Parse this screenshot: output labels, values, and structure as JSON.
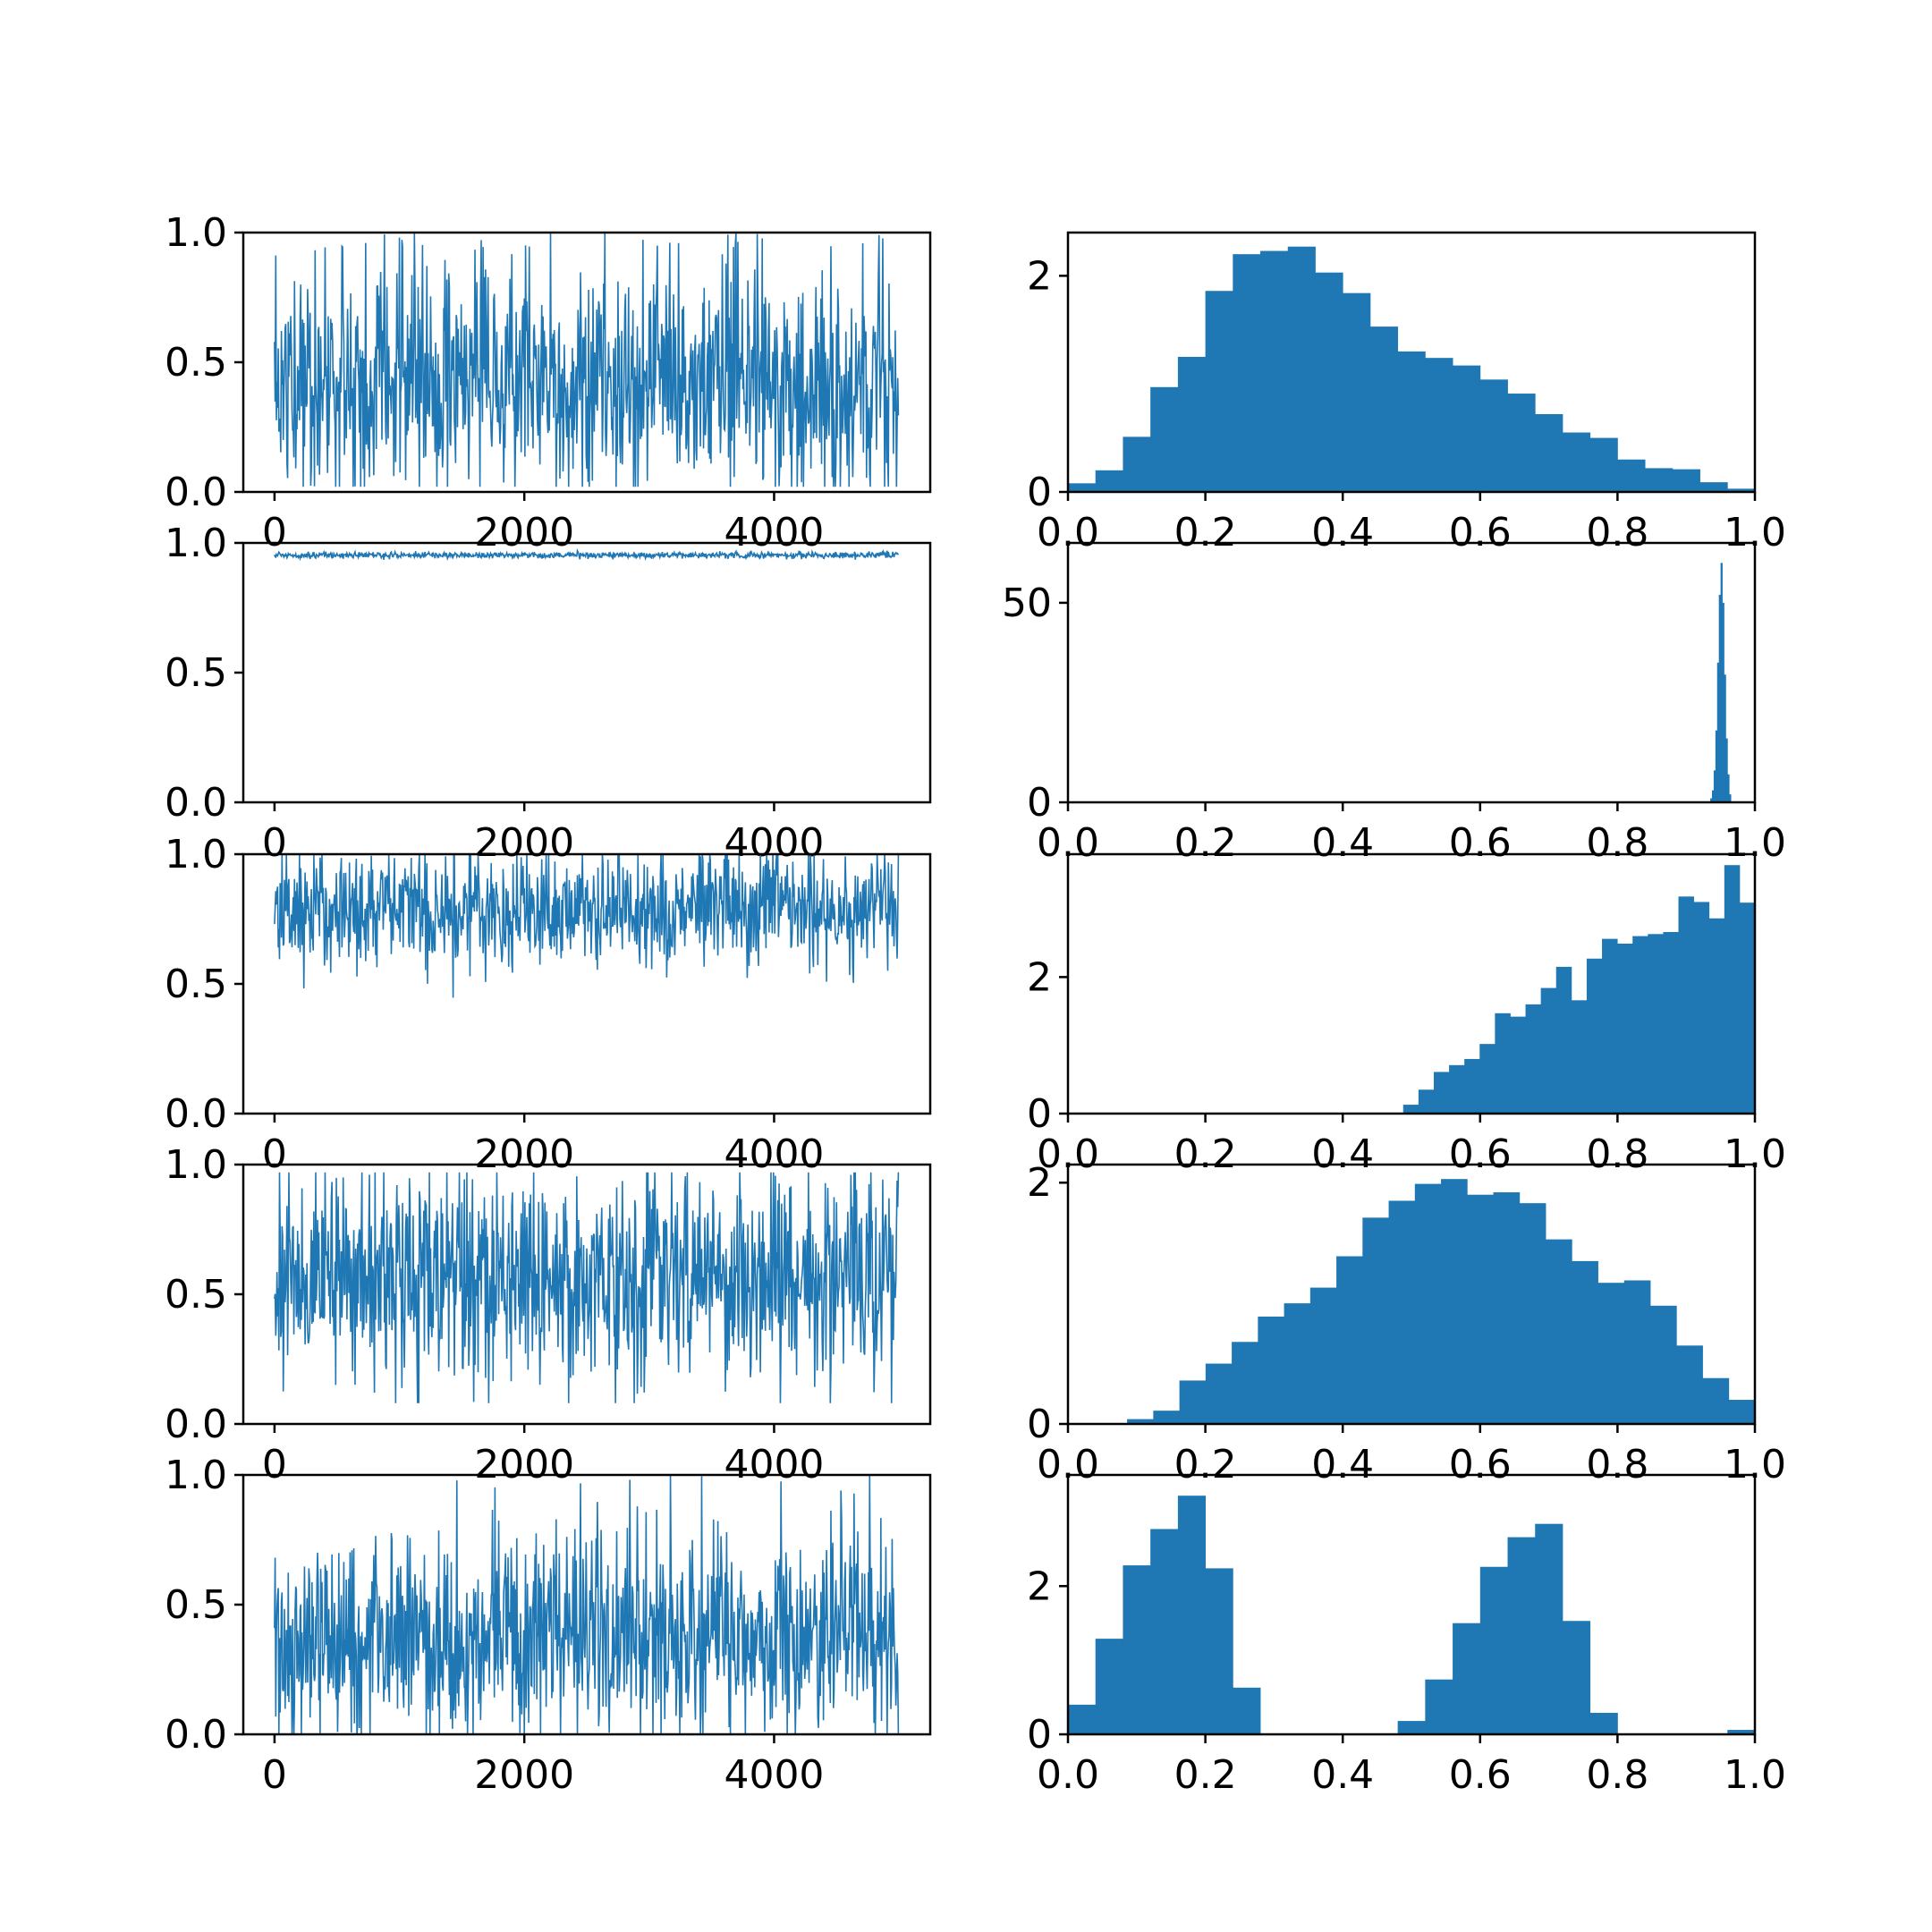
{
  "chart_data": [
    {
      "type": "line",
      "panel": "trace",
      "row": 1,
      "xlim": [
        -250,
        5250
      ],
      "ylim": [
        0,
        1
      ],
      "x_ticks": [
        "0",
        "2000",
        "4000"
      ],
      "y_ticks": [
        "0.0",
        "0.5",
        "1.0"
      ],
      "trace_band": {
        "n": 5000,
        "center": 0.42,
        "spread": 0.21,
        "min": 0.02,
        "max": 1.0,
        "spike_rate": 0.02
      },
      "color": "#1f77b4"
    },
    {
      "type": "bar",
      "panel": "histogram",
      "row": 1,
      "xlim": [
        0,
        1
      ],
      "ylim": [
        0,
        2.4
      ],
      "x_ticks": [
        "0.0",
        "0.2",
        "0.4",
        "0.6",
        "0.8",
        "1.0"
      ],
      "y_ticks": [
        "0",
        "2"
      ],
      "bin_range": [
        0.0,
        1.0
      ],
      "values": [
        0.08,
        0.2,
        0.51,
        0.97,
        1.25,
        1.86,
        2.2,
        2.23,
        2.27,
        2.03,
        1.84,
        1.53,
        1.3,
        1.24,
        1.17,
        1.04,
        0.91,
        0.72,
        0.55,
        0.5,
        0.3,
        0.22,
        0.21,
        0.09,
        0.03
      ],
      "color": "#1f77b4"
    },
    {
      "type": "line",
      "panel": "trace",
      "row": 2,
      "xlim": [
        -250,
        5250
      ],
      "ylim": [
        0,
        1
      ],
      "x_ticks": [
        "0",
        "2000",
        "4000"
      ],
      "y_ticks": [
        "0.0",
        "0.5",
        "1.0"
      ],
      "trace_band": {
        "n": 5000,
        "center": 0.953,
        "spread": 0.006,
        "min": 0.935,
        "max": 0.97,
        "spike_rate": 0
      },
      "color": "#1f77b4"
    },
    {
      "type": "bar",
      "panel": "histogram",
      "row": 2,
      "xlim": [
        0,
        1
      ],
      "ylim": [
        0,
        65
      ],
      "x_ticks": [
        "0.0",
        "0.2",
        "0.4",
        "0.6",
        "0.8",
        "1.0"
      ],
      "y_ticks": [
        "0",
        "50"
      ],
      "bin_range": [
        0.935,
        0.965
      ],
      "values": [
        1,
        3,
        8,
        18,
        35,
        52,
        60,
        50,
        32,
        16,
        7,
        2
      ],
      "color": "#1f77b4"
    },
    {
      "type": "line",
      "panel": "trace",
      "row": 3,
      "xlim": [
        -250,
        5250
      ],
      "ylim": [
        0,
        1
      ],
      "x_ticks": [
        "0",
        "2000",
        "4000"
      ],
      "y_ticks": [
        "0.0",
        "0.5",
        "1.0"
      ],
      "trace_band": {
        "n": 5000,
        "center": 0.79,
        "spread": 0.12,
        "min": 0.44,
        "max": 1.0,
        "spike_rate": 0
      },
      "color": "#1f77b4"
    },
    {
      "type": "bar",
      "panel": "histogram",
      "row": 3,
      "xlim": [
        0,
        1
      ],
      "ylim": [
        0,
        3.8
      ],
      "x_ticks": [
        "0.0",
        "0.2",
        "0.4",
        "0.6",
        "0.8",
        "1.0"
      ],
      "y_ticks": [
        "0",
        "2"
      ],
      "bin_range": [
        0.488,
        1.0
      ],
      "values": [
        0.13,
        0.35,
        0.61,
        0.71,
        0.8,
        1.02,
        1.47,
        1.42,
        1.6,
        1.84,
        2.15,
        1.66,
        2.27,
        2.56,
        2.49,
        2.6,
        2.63,
        2.66,
        3.18,
        3.1,
        2.86,
        3.64,
        3.09
      ],
      "color": "#1f77b4"
    },
    {
      "type": "line",
      "panel": "trace",
      "row": 4,
      "xlim": [
        -250,
        5250
      ],
      "ylim": [
        0,
        1
      ],
      "x_ticks": [
        "0",
        "2000",
        "4000"
      ],
      "y_ticks": [
        "0.0",
        "0.5",
        "1.0"
      ],
      "trace_band": {
        "n": 5000,
        "center": 0.57,
        "spread": 0.2,
        "min": 0.08,
        "max": 0.97,
        "spike_rate": 0
      },
      "color": "#1f77b4"
    },
    {
      "type": "bar",
      "panel": "histogram",
      "row": 4,
      "xlim": [
        0,
        1
      ],
      "ylim": [
        0,
        2.15
      ],
      "x_ticks": [
        "0.0",
        "0.2",
        "0.4",
        "0.6",
        "0.8",
        "1.0"
      ],
      "y_ticks": [
        "0",
        "2"
      ],
      "bin_range": [
        0.048,
        1.0
      ],
      "values": [
        0.0,
        0.04,
        0.11,
        0.36,
        0.5,
        0.68,
        0.89,
        1.0,
        1.13,
        1.39,
        1.71,
        1.85,
        1.99,
        2.03,
        1.9,
        1.92,
        1.83,
        1.53,
        1.35,
        1.17,
        1.19,
        0.98,
        0.65,
        0.38,
        0.2
      ],
      "color": "#1f77b4"
    },
    {
      "type": "line",
      "panel": "trace",
      "row": 5,
      "xlim": [
        -250,
        5250
      ],
      "ylim": [
        0,
        1
      ],
      "x_ticks": [
        "0",
        "2000",
        "4000"
      ],
      "y_ticks": [
        "0.0",
        "0.5",
        "1.0"
      ],
      "trace_band": {
        "n": 5000,
        "center": 0.38,
        "spread": 0.2,
        "min": 0.0,
        "max": 1.0,
        "spike_rate": 0.008
      },
      "color": "#1f77b4"
    },
    {
      "type": "bar",
      "panel": "histogram",
      "row": 5,
      "xlim": [
        0,
        1
      ],
      "ylim": [
        0,
        3.5
      ],
      "x_ticks": [
        "0.0",
        "0.2",
        "0.4",
        "0.6",
        "0.8",
        "1.0"
      ],
      "y_ticks": [
        "0",
        "2"
      ],
      "bin_range": [
        0.0,
        1.0
      ],
      "values": [
        0.4,
        1.29,
        2.28,
        2.77,
        3.22,
        2.24,
        0.63,
        0,
        0,
        0,
        0,
        0,
        0.18,
        0.74,
        1.5,
        2.26,
        2.66,
        2.84,
        1.53,
        0.29,
        0,
        0,
        0,
        0,
        0.06
      ],
      "color": "#1f77b4"
    }
  ]
}
